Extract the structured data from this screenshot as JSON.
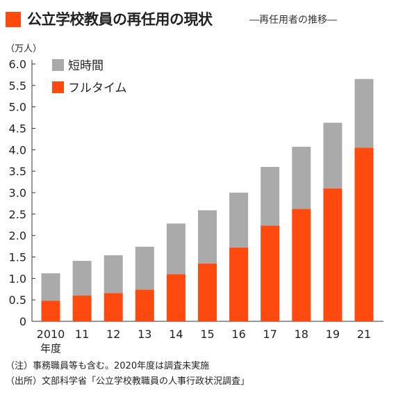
{
  "header": {
    "title": "公立学校教員の再任用の現状",
    "subtitle": "―再任用者の推移―"
  },
  "colors": {
    "accent": "#ff4a0f",
    "parttime": "#aaaaaa"
  },
  "chart_data": {
    "type": "bar",
    "stacked": true,
    "title": "公立学校教員の再任用の現状",
    "subtitle": "―再任用者の推移―",
    "unit_label": "（万人）",
    "categories": [
      "2010",
      "11",
      "12",
      "13",
      "14",
      "15",
      "16",
      "17",
      "18",
      "19",
      "21"
    ],
    "category_second_line": [
      "年度",
      "",
      "",
      "",
      "",
      "",
      "",
      "",
      "",
      "",
      ""
    ],
    "series": [
      {
        "name": "フルタイム",
        "color": "#ff4a0f",
        "values": [
          0.48,
          0.6,
          0.66,
          0.74,
          1.1,
          1.35,
          1.72,
          2.23,
          2.62,
          3.1,
          4.05
        ]
      },
      {
        "name": "短時間",
        "color": "#aaaaaa",
        "values": [
          0.64,
          0.81,
          0.88,
          1.0,
          1.18,
          1.24,
          1.28,
          1.37,
          1.45,
          1.53,
          1.6
        ]
      }
    ],
    "ylim": [
      0,
      6.0
    ],
    "yticks": [
      "0",
      "0.5",
      "1.0",
      "1.5",
      "2.0",
      "2.5",
      "3.0",
      "3.5",
      "4.0",
      "4.5",
      "5.0",
      "5.5",
      "6.0"
    ],
    "legend": [
      "短時間",
      "フルタイム"
    ],
    "legend_position": "top-left",
    "grid": false
  },
  "footnotes": {
    "note": "（注）事務職員等も含む。2020年度は調査未実施",
    "source": "（出所）文部科学省「公立学校教職員の人事行政状況調査」"
  }
}
